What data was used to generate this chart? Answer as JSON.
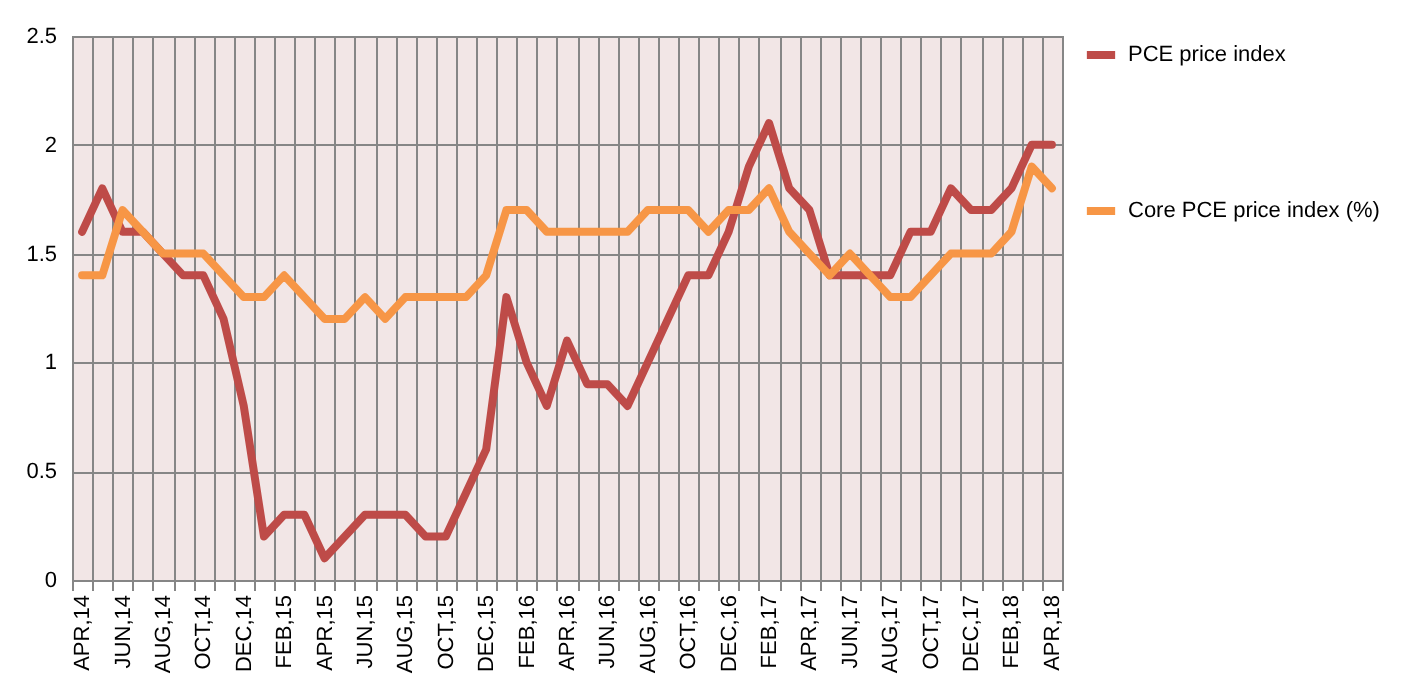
{
  "chart_data": {
    "type": "line",
    "categories": [
      "APR,14",
      null,
      "JUN,14",
      null,
      "AUG,14",
      null,
      "OCT,14",
      null,
      "DEC,14",
      null,
      "FEB,15",
      null,
      "APR,15",
      null,
      "JUN,15",
      null,
      "AUG,15",
      null,
      "OCT,15",
      null,
      "DEC,15",
      null,
      "FEB,16",
      null,
      "APR,16",
      null,
      "JUN,16",
      null,
      "AUG,16",
      null,
      "OCT,16",
      null,
      "DEC,16",
      null,
      "FEB,17",
      null,
      "APR,17",
      null,
      "JUN,17",
      null,
      "AUG,17",
      null,
      "OCT,17",
      null,
      "DEC,17",
      null,
      "FEB,18",
      null,
      "APR,18"
    ],
    "series": [
      {
        "name": "PCE price index",
        "color": "#be4b48",
        "values": [
          1.6,
          1.8,
          1.6,
          1.6,
          1.5,
          1.4,
          1.4,
          1.2,
          0.8,
          0.2,
          0.3,
          0.3,
          0.1,
          0.2,
          0.3,
          0.3,
          0.3,
          0.2,
          0.2,
          0.4,
          0.6,
          1.3,
          1.0,
          0.8,
          1.1,
          0.9,
          0.9,
          0.8,
          1.0,
          1.2,
          1.4,
          1.4,
          1.6,
          1.9,
          2.1,
          1.8,
          1.7,
          1.4,
          1.4,
          1.4,
          1.4,
          1.6,
          1.6,
          1.8,
          1.7,
          1.7,
          1.8,
          2.0,
          2.0
        ]
      },
      {
        "name": "Core PCE price index (%)",
        "color": "#f79646",
        "values": [
          1.4,
          1.4,
          1.7,
          1.6,
          1.5,
          1.5,
          1.5,
          1.4,
          1.3,
          1.3,
          1.4,
          1.3,
          1.2,
          1.2,
          1.3,
          1.2,
          1.3,
          1.3,
          1.3,
          1.3,
          1.4,
          1.7,
          1.7,
          1.6,
          1.6,
          1.6,
          1.6,
          1.6,
          1.7,
          1.7,
          1.7,
          1.6,
          1.7,
          1.7,
          1.8,
          1.6,
          1.5,
          1.4,
          1.5,
          1.4,
          1.3,
          1.3,
          1.4,
          1.5,
          1.5,
          1.5,
          1.6,
          1.9,
          1.8
        ]
      }
    ],
    "ylim": [
      0,
      2.5
    ],
    "yticks": [
      0,
      0.5,
      1,
      1.5,
      2,
      2.5
    ],
    "grid": true,
    "legend": "right",
    "line_style": "solid",
    "marker": "none"
  }
}
